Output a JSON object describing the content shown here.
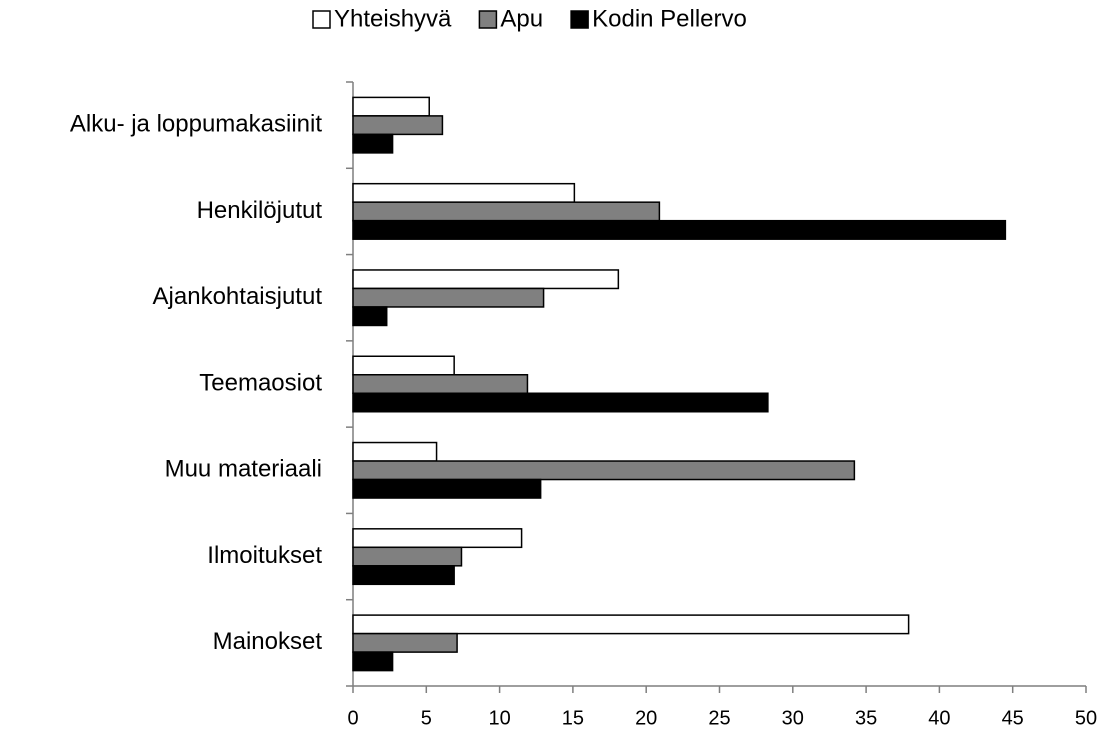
{
  "chart_data": {
    "type": "barh",
    "categories": [
      "Alku- ja loppumakasiinit",
      "Henkilöjutut",
      "Ajankohtaisjutut",
      "Teemaosiot",
      "Muu materiaali",
      "Ilmoitukset",
      "Mainokset"
    ],
    "series": [
      {
        "name": "Yhteishyvä",
        "color": "#ffffff",
        "values": [
          5.2,
          15.1,
          18.1,
          6.9,
          5.7,
          11.5,
          37.9
        ]
      },
      {
        "name": "Apu",
        "color": "#808080",
        "values": [
          6.1,
          20.9,
          13.0,
          11.9,
          34.2,
          7.4,
          7.1
        ]
      },
      {
        "name": "Kodin Pellervo",
        "color": "#000000",
        "values": [
          2.7,
          44.5,
          2.3,
          28.3,
          12.8,
          6.9,
          2.7
        ]
      }
    ],
    "xlim": [
      0,
      50
    ],
    "xticks": [
      0,
      5,
      10,
      15,
      20,
      25,
      30,
      35,
      40,
      45,
      50
    ],
    "legend": "top"
  }
}
